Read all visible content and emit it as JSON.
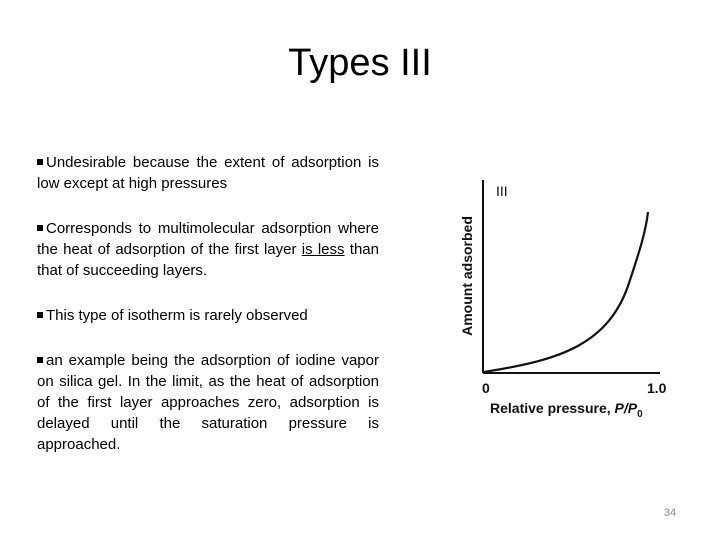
{
  "title": "Types III",
  "bullets": [
    {
      "text": "Undesirable because the extent of adsorption is low except at high pressures"
    },
    {
      "before": "Corresponds to multimolecular adsorption where the heat of adsorption of the first layer ",
      "underlined": "is less",
      "after": " than that of succeeding layers."
    },
    {
      "text": "This type of isotherm is rarely observed"
    },
    {
      "text": "an example being the adsorption of iodine vapor on silica gel. In the limit, as the heat of adsorption of the first layer approaches zero, adsorption is delayed until the saturation pressure is approached."
    }
  ],
  "figure": {
    "curve_label": "III",
    "y_label": "Amount adsorbed",
    "x_label": "Relative pressure, ",
    "x_label_var": "P/P",
    "x_label_sub": "0",
    "x_start": "0",
    "x_end": "1.0"
  },
  "page_number": "34"
}
